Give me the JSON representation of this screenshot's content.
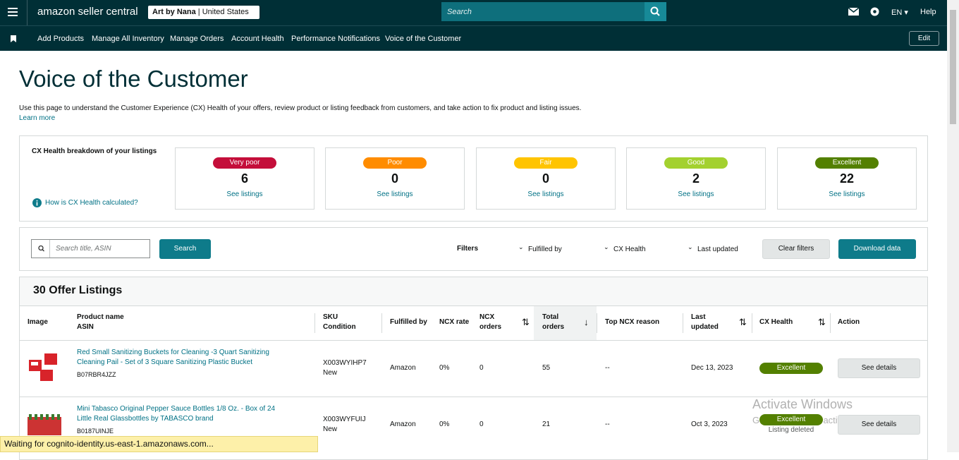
{
  "topbar": {
    "brand": "amazon seller central",
    "store": "Art by Nana",
    "country": "United States",
    "search_placeholder": "Search",
    "language": "EN",
    "help": "Help"
  },
  "nav": {
    "items": [
      "Add Products",
      "Manage All Inventory",
      "Manage Orders",
      "Account Health",
      "Performance Notifications",
      "Voice of the Customer"
    ],
    "edit": "Edit"
  },
  "page": {
    "title": "Voice of the Customer",
    "description": "Use this page to understand the Customer Experience (CX) Health of your offers, review product or listing feedback from customers, and take action to fix product and listing issues.",
    "learn_more": "Learn more"
  },
  "health": {
    "title": "CX Health breakdown of your listings",
    "help_link": "How is CX Health calculated?",
    "cards": [
      {
        "label": "Very poor",
        "count": 6,
        "link": "See listings"
      },
      {
        "label": "Poor",
        "count": 0,
        "link": "See listings"
      },
      {
        "label": "Fair",
        "count": 0,
        "link": "See listings"
      },
      {
        "label": "Good",
        "count": 2,
        "link": "See listings"
      },
      {
        "label": "Excellent",
        "count": 22,
        "link": "See listings"
      }
    ]
  },
  "filters": {
    "search_placeholder": "Search title, ASIN",
    "search_button": "Search",
    "label": "Filters",
    "dropdowns": [
      "Fulfilled by",
      "CX Health",
      "Last updated"
    ],
    "clear": "Clear filters",
    "download": "Download data"
  },
  "table": {
    "title": "30 Offer Listings",
    "headers": [
      [
        "Image"
      ],
      [
        "Product name",
        "ASIN"
      ],
      [
        "SKU",
        "Condition"
      ],
      [
        "Fulfilled by"
      ],
      [
        "NCX rate"
      ],
      [
        "NCX",
        "orders"
      ],
      [
        "Total",
        "orders"
      ],
      [
        "Top NCX reason"
      ],
      [
        "Last",
        "updated"
      ],
      [
        "CX Health"
      ],
      [
        "Action"
      ]
    ],
    "rows": [
      {
        "product_name": "Red Small Sanitizing Buckets for Cleaning -3 Quart Sanitizing Cleaning Pail - Set of 3 Square Sanitizing Plastic Bucket",
        "asin": "B07RBR4JZZ",
        "sku": "X003WYIHP7",
        "condition": "New",
        "fulfilled_by": "Amazon",
        "ncx_rate": "0%",
        "ncx_orders": 0,
        "total_orders": 55,
        "top_ncx_reason": "--",
        "last_updated": "Dec 13, 2023",
        "cx_health": "Excellent",
        "action": "See details"
      },
      {
        "product_name": "Mini Tabasco Original Pepper Sauce Bottles 1/8 Oz. - Box of 24 Little Real Glassbottles by TABASCO brand",
        "asin": "B0187UINJE",
        "sku": "X003WYFUIJ",
        "condition": "New",
        "fulfilled_by": "Amazon",
        "ncx_rate": "0%",
        "ncx_orders": 0,
        "total_orders": 21,
        "top_ncx_reason": "--",
        "last_updated": "Oct 3, 2023",
        "cx_health": "Excellent",
        "note": "Listing deleted",
        "action": "See details"
      }
    ]
  },
  "status_bar": "Waiting for cognito-identity.us-east-1.amazonaws.com...",
  "watermark": {
    "title": "Activate Windows",
    "subtitle": "Go to Settings to activate Windows."
  }
}
